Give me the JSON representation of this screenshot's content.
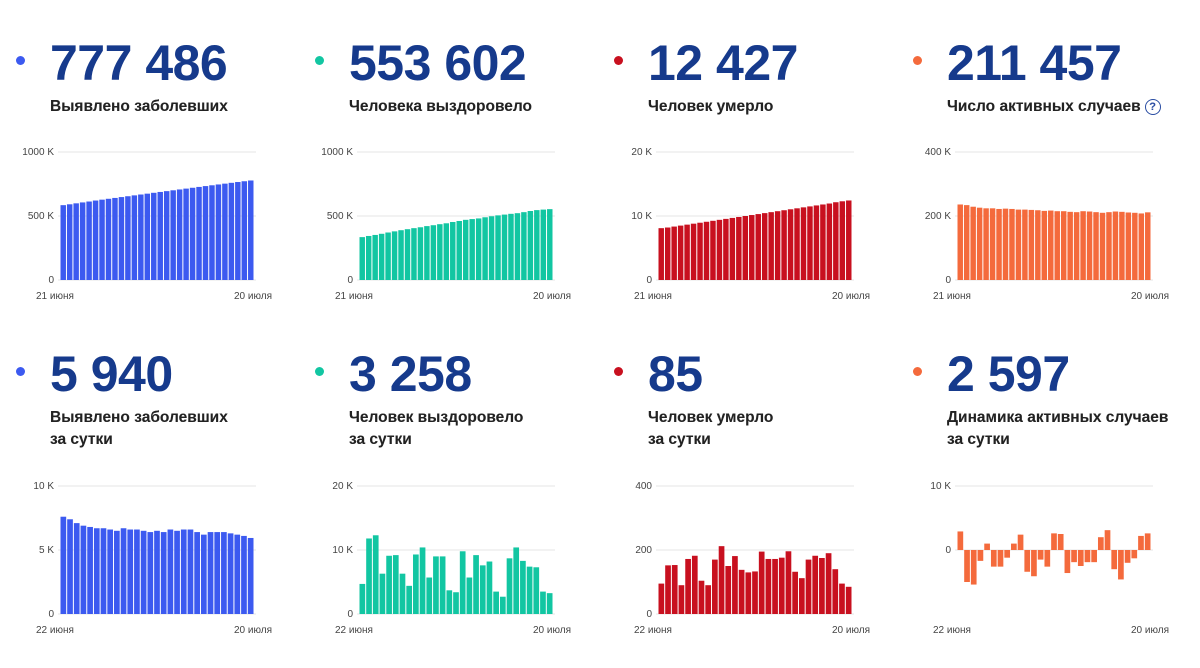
{
  "panels": [
    {
      "color": "#3c5af0",
      "value": "777 486",
      "label": [
        "Выявлено заболевших"
      ]
    },
    {
      "color": "#12c6a2",
      "value": "553 602",
      "label": [
        "Человека выздоровело"
      ]
    },
    {
      "color": "#c8101f",
      "value": "12 427",
      "label": [
        "Человек умерло"
      ]
    },
    {
      "color": "#f46a3c",
      "value": "211 457",
      "label": [
        "Число активных случаев"
      ],
      "help": "?"
    },
    {
      "color": "#3c5af0",
      "value": "5 940",
      "label": [
        "Выявлено заболевших",
        "за сутки"
      ]
    },
    {
      "color": "#12c6a2",
      "value": "3 258",
      "label": [
        "Человек выздоровело",
        "за сутки"
      ]
    },
    {
      "color": "#c8101f",
      "value": "85",
      "label": [
        "Человек умерло",
        "за сутки"
      ]
    },
    {
      "color": "#f46a3c",
      "value": "2 597",
      "label": [
        "Динамика активных случаев",
        "за сутки"
      ]
    }
  ],
  "chart_data": [
    {
      "type": "bar",
      "color": "#3c5af0",
      "x_start": "21 июня",
      "x_end": "20 июля",
      "yticks": [
        {
          "v": 0,
          "t": "0"
        },
        {
          "v": 500000,
          "t": "500 K"
        },
        {
          "v": 1000000,
          "t": "1000 K"
        }
      ],
      "ylim": [
        0,
        1000000
      ],
      "values": [
        584680,
        591465,
        598878,
        606043,
        613148,
        620794,
        627646,
        634437,
        641156,
        647849,
        654405,
        661165,
        667883,
        674515,
        681251,
        687862,
        694230,
        700792,
        707301,
        713936,
        720547,
        727162,
        733699,
        739947,
        746369,
        752797,
        759203,
        765437,
        771546,
        777486
      ]
    },
    {
      "type": "bar",
      "color": "#12c6a2",
      "x_start": "21 июня",
      "x_end": "20 июля",
      "yticks": [
        {
          "v": 0,
          "t": "0"
        },
        {
          "v": 500000,
          "t": "500 K"
        },
        {
          "v": 1000000,
          "t": "1000 K"
        }
      ],
      "ylim": [
        0,
        1000000
      ],
      "values": [
        335000,
        344000,
        352000,
        361000,
        371000,
        380000,
        389000,
        397000,
        405000,
        412000,
        421000,
        428000,
        436000,
        443000,
        453000,
        461000,
        470000,
        476000,
        481000,
        490000,
        498000,
        505000,
        511000,
        517000,
        522000,
        530000,
        539000,
        546000,
        550000,
        553602
      ]
    },
    {
      "type": "bar",
      "color": "#c8101f",
      "x_start": "21 июня",
      "x_end": "20 июля",
      "yticks": [
        {
          "v": 0,
          "t": "0"
        },
        {
          "v": 10000,
          "t": "10 K"
        },
        {
          "v": 20000,
          "t": "20 K"
        }
      ],
      "ylim": [
        0,
        20000
      ],
      "values": [
        8100,
        8200,
        8350,
        8500,
        8650,
        8800,
        8950,
        9100,
        9250,
        9400,
        9550,
        9700,
        9850,
        10000,
        10150,
        10300,
        10450,
        10600,
        10750,
        10900,
        11050,
        11200,
        11350,
        11500,
        11650,
        11800,
        11950,
        12150,
        12300,
        12427
      ]
    },
    {
      "type": "bar",
      "color": "#f46a3c",
      "x_start": "21 июня",
      "x_end": "20 июля",
      "yticks": [
        {
          "v": 0,
          "t": "0"
        },
        {
          "v": 200000,
          "t": "200 K"
        },
        {
          "v": 400000,
          "t": "400 K"
        }
      ],
      "ylim": [
        0,
        400000
      ],
      "values": [
        236000,
        234000,
        229000,
        226000,
        224000,
        224000,
        222000,
        223000,
        222000,
        220000,
        220000,
        219000,
        218000,
        216000,
        217000,
        215000,
        215000,
        213000,
        212000,
        215000,
        214000,
        212000,
        210000,
        212000,
        214000,
        213000,
        211000,
        210000,
        208000,
        211457
      ]
    },
    {
      "type": "bar",
      "color": "#3c5af0",
      "x_start": "22 июня",
      "x_end": "20 июля",
      "yticks": [
        {
          "v": 0,
          "t": "0"
        },
        {
          "v": 5000,
          "t": "5 K"
        },
        {
          "v": 10000,
          "t": "10 K"
        }
      ],
      "ylim": [
        0,
        10000
      ],
      "values": [
        7600,
        7400,
        7100,
        6900,
        6800,
        6700,
        6700,
        6600,
        6500,
        6700,
        6600,
        6600,
        6500,
        6400,
        6500,
        6400,
        6600,
        6500,
        6600,
        6600,
        6400,
        6200,
        6400,
        6400,
        6400,
        6300,
        6200,
        6100,
        5940
      ]
    },
    {
      "type": "bar",
      "color": "#12c6a2",
      "x_start": "22 июня",
      "x_end": "20 июля",
      "yticks": [
        {
          "v": 0,
          "t": "0"
        },
        {
          "v": 10000,
          "t": "10 K"
        },
        {
          "v": 20000,
          "t": "20 K"
        }
      ],
      "ylim": [
        0,
        20000
      ],
      "values": [
        4700,
        11800,
        12300,
        6300,
        9100,
        9200,
        6300,
        4400,
        9300,
        10400,
        5700,
        9000,
        9000,
        3700,
        3400,
        9800,
        5700,
        9200,
        7600,
        8200,
        3500,
        2700,
        8700,
        10400,
        8300,
        7400,
        7300,
        3500,
        3258
      ]
    },
    {
      "type": "bar",
      "color": "#c8101f",
      "x_start": "22 июня",
      "x_end": "20 июля",
      "yticks": [
        {
          "v": 0,
          "t": "0"
        },
        {
          "v": 200,
          "t": "200"
        },
        {
          "v": 400,
          "t": "400"
        }
      ],
      "ylim": [
        0,
        400
      ],
      "values": [
        95,
        152,
        153,
        90,
        172,
        182,
        104,
        90,
        170,
        212,
        150,
        181,
        138,
        130,
        133,
        195,
        172,
        172,
        176,
        196,
        132,
        112,
        170,
        182,
        175,
        190,
        140,
        95,
        85
      ]
    },
    {
      "type": "bar",
      "color": "#f46a3c",
      "x_start": "22 июня",
      "x_end": "20 июля",
      "yticks": [
        {
          "v": 0,
          "t": "0"
        },
        {
          "v": 10000,
          "t": "10 K"
        }
      ],
      "ylim": [
        -10000,
        10000
      ],
      "values": [
        2900,
        -5000,
        -5400,
        -1700,
        1000,
        -2600,
        -2600,
        -1200,
        1000,
        2400,
        -3400,
        -4100,
        -1500,
        -2600,
        2600,
        2500,
        -3600,
        -1900,
        -2500,
        -1900,
        -1900,
        2000,
        3100,
        -3000,
        -4600,
        -2000,
        -1300,
        2200,
        2597
      ]
    }
  ]
}
